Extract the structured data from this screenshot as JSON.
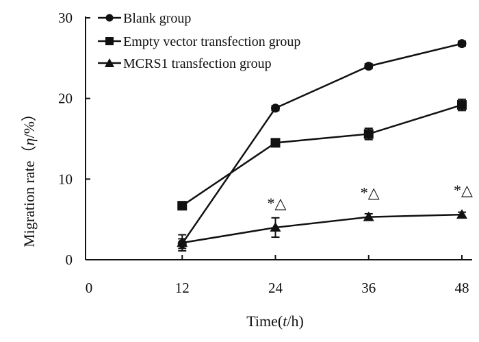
{
  "chart_data": {
    "type": "line",
    "x": [
      12,
      24,
      36,
      48
    ],
    "series": [
      {
        "name": "Blank group",
        "marker": "circle",
        "values": [
          2.0,
          18.8,
          24.0,
          26.8
        ],
        "errors": [
          0.6,
          0.3,
          0.3,
          0.3
        ]
      },
      {
        "name": "Empty vector transfection group",
        "marker": "square",
        "values": [
          6.7,
          14.5,
          15.6,
          19.2
        ],
        "errors": [
          0.3,
          0.4,
          0.7,
          0.7
        ]
      },
      {
        "name": "MCRS1 transfection group",
        "marker": "triangle",
        "values": [
          2.1,
          4.0,
          5.3,
          5.6
        ],
        "errors": [
          1.0,
          1.2,
          0.4,
          0.3
        ]
      }
    ],
    "xticks": [
      "0",
      "12",
      "24",
      "36",
      "48"
    ],
    "yticks": [
      "0",
      "10",
      "20",
      "30"
    ],
    "xlim": [
      0,
      48
    ],
    "ylim": [
      0,
      30
    ],
    "xlabel_main": "Time(",
    "xlabel_var": "t",
    "xlabel_unit": "/h)",
    "ylabel_main": "Migration rate（",
    "ylabel_var": "η",
    "ylabel_unit": "/%）",
    "annotations": [
      {
        "x": 24,
        "y": 4.0,
        "text": "*△"
      },
      {
        "x": 36,
        "y": 5.3,
        "text": "*△"
      },
      {
        "x": 48,
        "y": 5.6,
        "text": "*△"
      }
    ],
    "legend_position": "top-left",
    "grid": false,
    "line_color": "#111111"
  }
}
